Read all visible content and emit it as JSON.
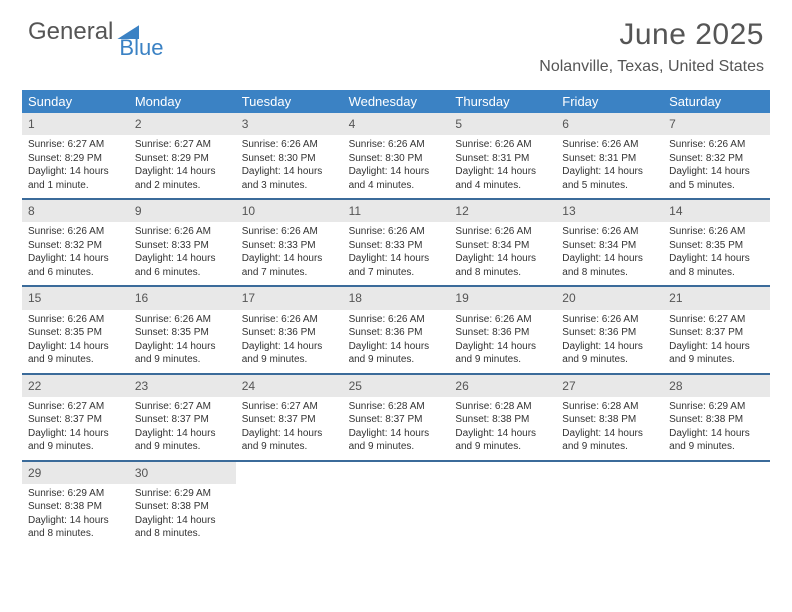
{
  "logo": {
    "word1": "General",
    "word2": "Blue"
  },
  "title": "June 2025",
  "location": "Nolanville, Texas, United States",
  "colors": {
    "header_bg": "#3b82c4",
    "header_text": "#ffffff",
    "daynum_bg": "#e8e8e8",
    "week_border": "#3b6b9a",
    "body_text": "#333333",
    "title_text": "#555555"
  },
  "layout": {
    "columns": 7,
    "rows": 5
  },
  "weekdays": [
    "Sunday",
    "Monday",
    "Tuesday",
    "Wednesday",
    "Thursday",
    "Friday",
    "Saturday"
  ],
  "days": [
    {
      "n": "1",
      "sr": "Sunrise: 6:27 AM",
      "ss": "Sunset: 8:29 PM",
      "d1": "Daylight: 14 hours",
      "d2": "and 1 minute."
    },
    {
      "n": "2",
      "sr": "Sunrise: 6:27 AM",
      "ss": "Sunset: 8:29 PM",
      "d1": "Daylight: 14 hours",
      "d2": "and 2 minutes."
    },
    {
      "n": "3",
      "sr": "Sunrise: 6:26 AM",
      "ss": "Sunset: 8:30 PM",
      "d1": "Daylight: 14 hours",
      "d2": "and 3 minutes."
    },
    {
      "n": "4",
      "sr": "Sunrise: 6:26 AM",
      "ss": "Sunset: 8:30 PM",
      "d1": "Daylight: 14 hours",
      "d2": "and 4 minutes."
    },
    {
      "n": "5",
      "sr": "Sunrise: 6:26 AM",
      "ss": "Sunset: 8:31 PM",
      "d1": "Daylight: 14 hours",
      "d2": "and 4 minutes."
    },
    {
      "n": "6",
      "sr": "Sunrise: 6:26 AM",
      "ss": "Sunset: 8:31 PM",
      "d1": "Daylight: 14 hours",
      "d2": "and 5 minutes."
    },
    {
      "n": "7",
      "sr": "Sunrise: 6:26 AM",
      "ss": "Sunset: 8:32 PM",
      "d1": "Daylight: 14 hours",
      "d2": "and 5 minutes."
    },
    {
      "n": "8",
      "sr": "Sunrise: 6:26 AM",
      "ss": "Sunset: 8:32 PM",
      "d1": "Daylight: 14 hours",
      "d2": "and 6 minutes."
    },
    {
      "n": "9",
      "sr": "Sunrise: 6:26 AM",
      "ss": "Sunset: 8:33 PM",
      "d1": "Daylight: 14 hours",
      "d2": "and 6 minutes."
    },
    {
      "n": "10",
      "sr": "Sunrise: 6:26 AM",
      "ss": "Sunset: 8:33 PM",
      "d1": "Daylight: 14 hours",
      "d2": "and 7 minutes."
    },
    {
      "n": "11",
      "sr": "Sunrise: 6:26 AM",
      "ss": "Sunset: 8:33 PM",
      "d1": "Daylight: 14 hours",
      "d2": "and 7 minutes."
    },
    {
      "n": "12",
      "sr": "Sunrise: 6:26 AM",
      "ss": "Sunset: 8:34 PM",
      "d1": "Daylight: 14 hours",
      "d2": "and 8 minutes."
    },
    {
      "n": "13",
      "sr": "Sunrise: 6:26 AM",
      "ss": "Sunset: 8:34 PM",
      "d1": "Daylight: 14 hours",
      "d2": "and 8 minutes."
    },
    {
      "n": "14",
      "sr": "Sunrise: 6:26 AM",
      "ss": "Sunset: 8:35 PM",
      "d1": "Daylight: 14 hours",
      "d2": "and 8 minutes."
    },
    {
      "n": "15",
      "sr": "Sunrise: 6:26 AM",
      "ss": "Sunset: 8:35 PM",
      "d1": "Daylight: 14 hours",
      "d2": "and 9 minutes."
    },
    {
      "n": "16",
      "sr": "Sunrise: 6:26 AM",
      "ss": "Sunset: 8:35 PM",
      "d1": "Daylight: 14 hours",
      "d2": "and 9 minutes."
    },
    {
      "n": "17",
      "sr": "Sunrise: 6:26 AM",
      "ss": "Sunset: 8:36 PM",
      "d1": "Daylight: 14 hours",
      "d2": "and 9 minutes."
    },
    {
      "n": "18",
      "sr": "Sunrise: 6:26 AM",
      "ss": "Sunset: 8:36 PM",
      "d1": "Daylight: 14 hours",
      "d2": "and 9 minutes."
    },
    {
      "n": "19",
      "sr": "Sunrise: 6:26 AM",
      "ss": "Sunset: 8:36 PM",
      "d1": "Daylight: 14 hours",
      "d2": "and 9 minutes."
    },
    {
      "n": "20",
      "sr": "Sunrise: 6:26 AM",
      "ss": "Sunset: 8:36 PM",
      "d1": "Daylight: 14 hours",
      "d2": "and 9 minutes."
    },
    {
      "n": "21",
      "sr": "Sunrise: 6:27 AM",
      "ss": "Sunset: 8:37 PM",
      "d1": "Daylight: 14 hours",
      "d2": "and 9 minutes."
    },
    {
      "n": "22",
      "sr": "Sunrise: 6:27 AM",
      "ss": "Sunset: 8:37 PM",
      "d1": "Daylight: 14 hours",
      "d2": "and 9 minutes."
    },
    {
      "n": "23",
      "sr": "Sunrise: 6:27 AM",
      "ss": "Sunset: 8:37 PM",
      "d1": "Daylight: 14 hours",
      "d2": "and 9 minutes."
    },
    {
      "n": "24",
      "sr": "Sunrise: 6:27 AM",
      "ss": "Sunset: 8:37 PM",
      "d1": "Daylight: 14 hours",
      "d2": "and 9 minutes."
    },
    {
      "n": "25",
      "sr": "Sunrise: 6:28 AM",
      "ss": "Sunset: 8:37 PM",
      "d1": "Daylight: 14 hours",
      "d2": "and 9 minutes."
    },
    {
      "n": "26",
      "sr": "Sunrise: 6:28 AM",
      "ss": "Sunset: 8:38 PM",
      "d1": "Daylight: 14 hours",
      "d2": "and 9 minutes."
    },
    {
      "n": "27",
      "sr": "Sunrise: 6:28 AM",
      "ss": "Sunset: 8:38 PM",
      "d1": "Daylight: 14 hours",
      "d2": "and 9 minutes."
    },
    {
      "n": "28",
      "sr": "Sunrise: 6:29 AM",
      "ss": "Sunset: 8:38 PM",
      "d1": "Daylight: 14 hours",
      "d2": "and 9 minutes."
    },
    {
      "n": "29",
      "sr": "Sunrise: 6:29 AM",
      "ss": "Sunset: 8:38 PM",
      "d1": "Daylight: 14 hours",
      "d2": "and 8 minutes."
    },
    {
      "n": "30",
      "sr": "Sunrise: 6:29 AM",
      "ss": "Sunset: 8:38 PM",
      "d1": "Daylight: 14 hours",
      "d2": "and 8 minutes."
    }
  ]
}
